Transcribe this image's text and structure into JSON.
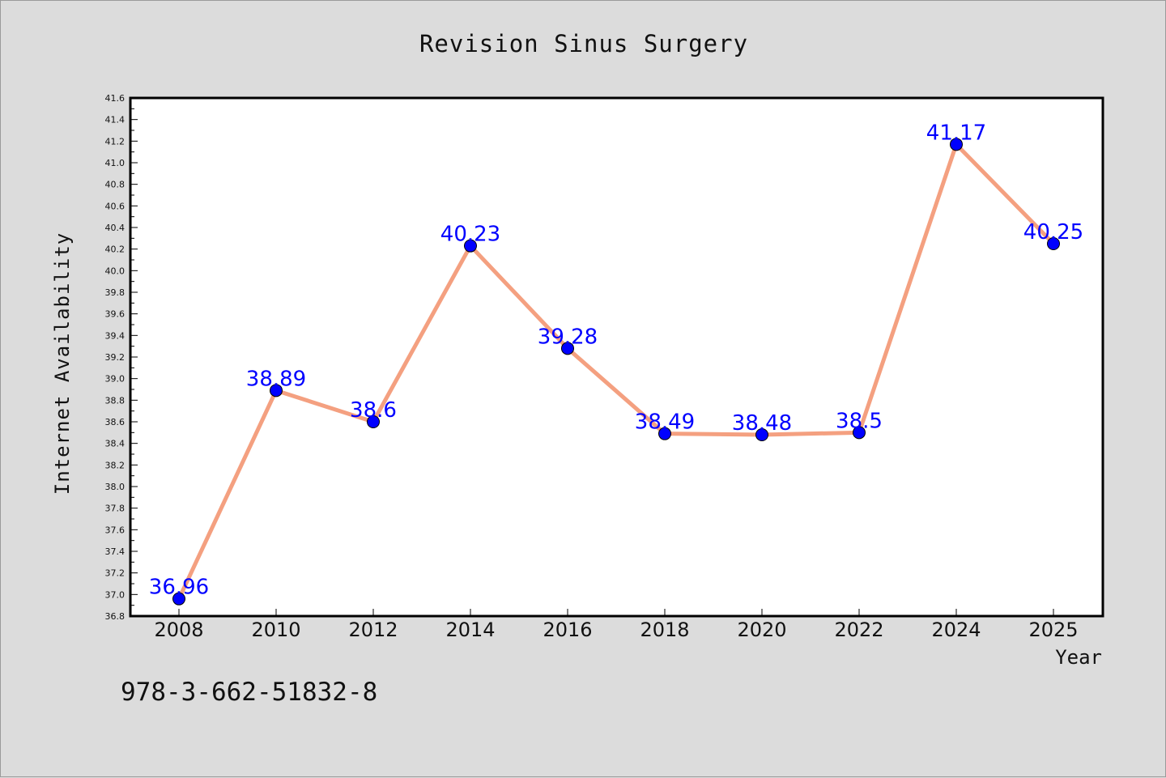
{
  "chart_data": {
    "type": "line",
    "title": "Revision Sinus Surgery",
    "xlabel": "Year",
    "ylabel": "Internet Availability",
    "x": [
      "2008",
      "2010",
      "2012",
      "2014",
      "2016",
      "2018",
      "2020",
      "2022",
      "2024",
      "2025"
    ],
    "series": [
      {
        "values": [
          36.96,
          38.89,
          38.6,
          40.23,
          39.28,
          38.49,
          38.48,
          38.5,
          41.17,
          40.25
        ],
        "data_labels": [
          "36.96",
          "38.89",
          "38.6",
          "40.23",
          "39.28",
          "38.49",
          "38.48",
          "38.5",
          "41.17",
          "40.25"
        ],
        "line_color": "#f4a080",
        "marker_color": "#0000ff"
      }
    ],
    "ylim": [
      36.8,
      41.6
    ],
    "yticks": [
      "36.8",
      "37.0",
      "37.2",
      "37.4",
      "37.6",
      "37.8",
      "38.0",
      "38.2",
      "38.4",
      "38.6",
      "38.8",
      "39.0",
      "39.2",
      "39.4",
      "39.6",
      "39.8",
      "40.0",
      "40.2",
      "40.4",
      "40.6",
      "40.8",
      "41.0",
      "41.2",
      "41.4",
      "41.6"
    ],
    "grid": false,
    "legend": "none"
  },
  "footnote": "978-3-662-51832-8",
  "colors": {
    "background": "#dcdcdc",
    "plot_background": "#ffffff",
    "line": "#f4a080",
    "marker": "#0000ff",
    "data_label": "#0000ff"
  }
}
